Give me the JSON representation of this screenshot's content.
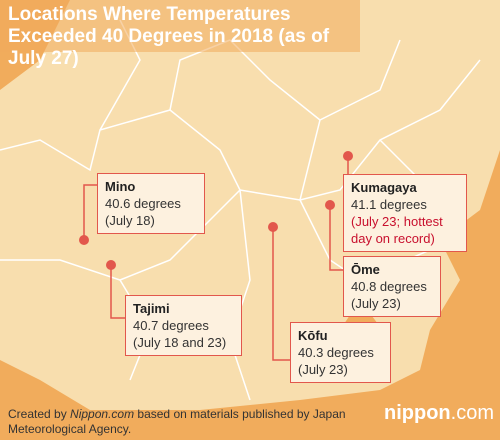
{
  "title": "Locations Where Temperatures Exceeded 40 Degrees in 2018 (as of July 27)",
  "locations": [
    {
      "name": "Mino",
      "temperature": "40.6 degrees",
      "note": "(July 18)"
    },
    {
      "name": "Tajimi",
      "temperature": "40.7 degrees",
      "note": "(July 18 and 23)"
    },
    {
      "name": "Kōfu",
      "temperature": "40.3 degrees",
      "note": "(July 23)"
    },
    {
      "name": "Kumagaya",
      "temperature": "41.1 degrees",
      "note": "(July 23; hottest day on record)"
    },
    {
      "name": "Ōme",
      "temperature": "40.8 degrees",
      "note": "(July 23)"
    }
  ],
  "footer": {
    "prefix": "Created by ",
    "source": "Nippon.com",
    "suffix": " based on materials published by Japan Meteorological Agency."
  },
  "logo": {
    "name": "nippon",
    "suffix": ".com"
  }
}
